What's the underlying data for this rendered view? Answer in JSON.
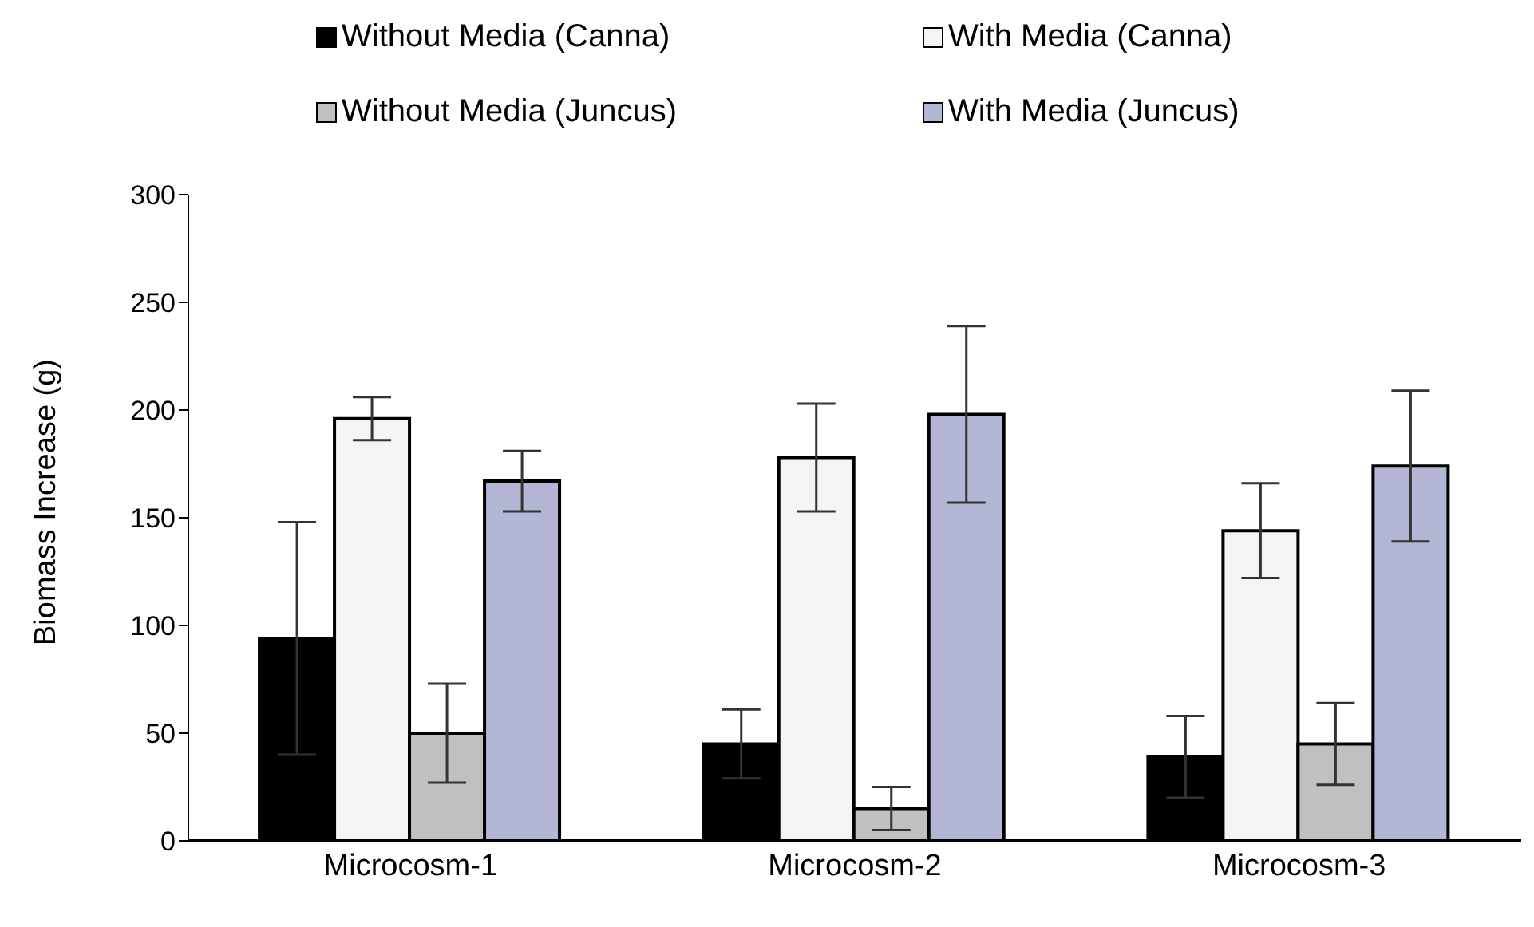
{
  "chart_data": {
    "type": "bar",
    "ylabel": "Biomass Increase (g)",
    "categories": [
      "Microcosm-1",
      "Microcosm-2",
      "Microcosm-3"
    ],
    "series": [
      {
        "name": "Without Media (Canna)",
        "color": "#000000",
        "values": [
          94,
          45,
          39
        ],
        "errors": [
          54,
          16,
          19
        ]
      },
      {
        "name": "With Media (Canna)",
        "color": "#f4f4f4",
        "values": [
          196,
          178,
          144
        ],
        "errors": [
          10,
          25,
          22
        ]
      },
      {
        "name": "Without Media (Juncus)",
        "color": "#c0c0c0",
        "values": [
          50,
          15,
          45
        ],
        "errors": [
          23,
          10,
          19
        ]
      },
      {
        "name": "With Media (Juncus)",
        "color": "#b4b6d6",
        "values": [
          167,
          198,
          174
        ],
        "errors": [
          14,
          41,
          35
        ]
      }
    ],
    "ylim": [
      0,
      300
    ],
    "yticks": [
      0,
      50,
      100,
      150,
      200,
      250,
      300
    ],
    "grid": false,
    "legend": "top"
  }
}
